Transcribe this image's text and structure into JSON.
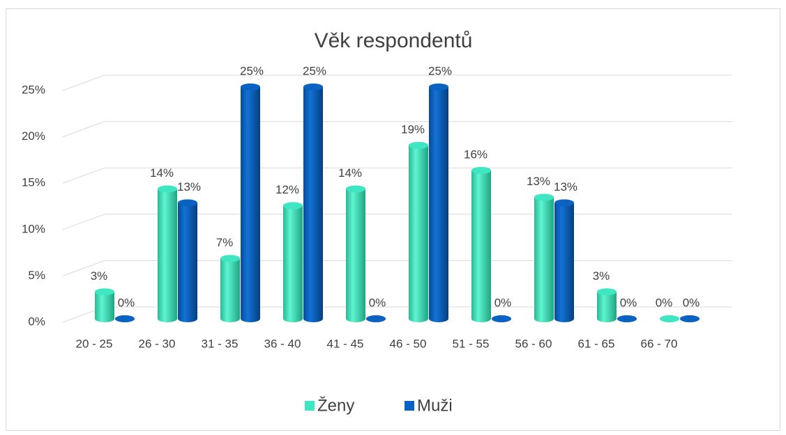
{
  "chart_data": {
    "type": "bar3d",
    "title": "Věk respondentů",
    "categories": [
      "20 - 25",
      "26 - 30",
      "31 - 35",
      "36 - 40",
      "41 - 45",
      "46 - 50",
      "51 - 55",
      "56 - 60",
      "61 - 65",
      "66 - 70"
    ],
    "series": [
      {
        "name": "Ženy",
        "color": "#3fe6c2",
        "values": [
          2.9,
          14,
          6.5,
          12.2,
          14,
          18.7,
          16,
          13.1,
          2.9,
          0
        ],
        "value_labels": [
          "3%",
          "14%",
          "7%",
          "12%",
          "14%",
          "19%",
          "16%",
          "13%",
          "3%",
          "0%"
        ]
      },
      {
        "name": "Muži",
        "color": "#0a63c2",
        "values": [
          0,
          12.5,
          25,
          25,
          0,
          25,
          0,
          12.5,
          0,
          0
        ],
        "value_labels": [
          "0%",
          "13%",
          "25%",
          "25%",
          "0%",
          "25%",
          "0%",
          "13%",
          "0%",
          "0%"
        ]
      }
    ],
    "ylim": [
      0,
      25
    ],
    "yticks": [
      {
        "value": 0,
        "label": "0%"
      },
      {
        "value": 5,
        "label": "5%"
      },
      {
        "value": 10,
        "label": "10%"
      },
      {
        "value": 15,
        "label": "15%"
      },
      {
        "value": 20,
        "label": "20%"
      },
      {
        "value": 25,
        "label": "25%"
      }
    ],
    "grid": true,
    "legend": "bottom"
  }
}
